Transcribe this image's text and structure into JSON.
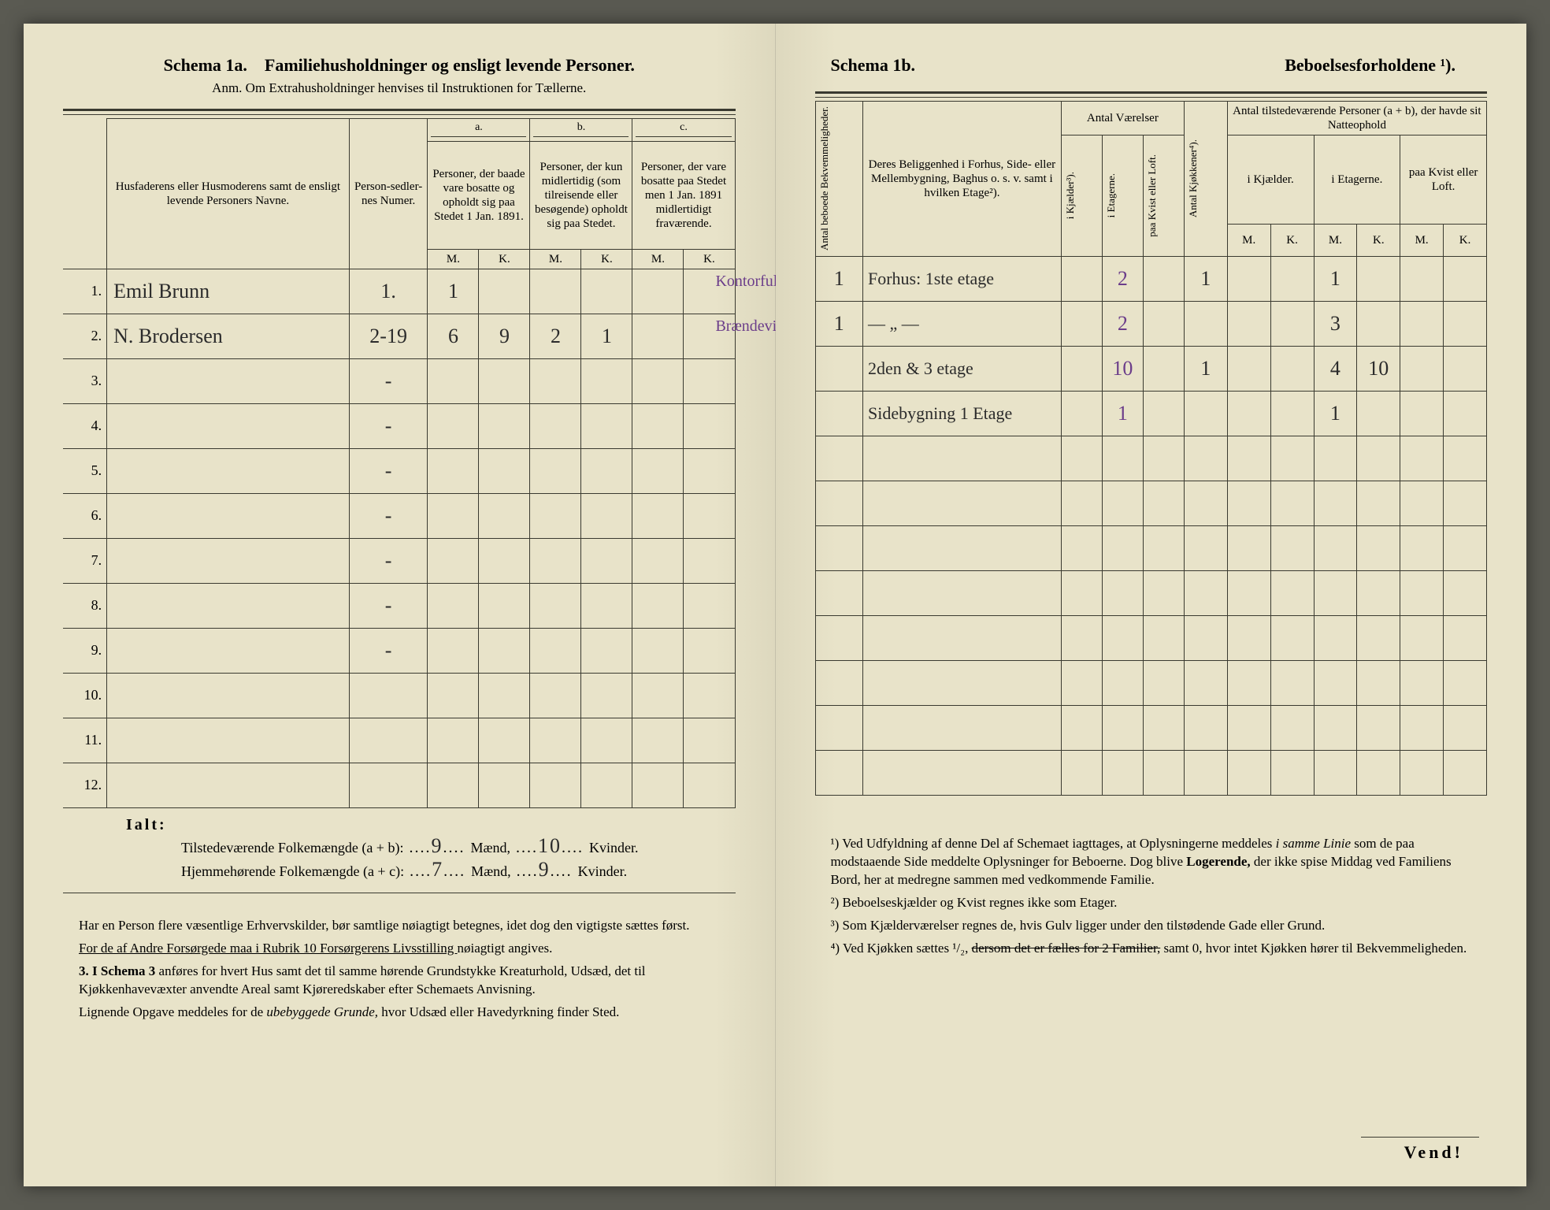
{
  "left": {
    "title_schema": "Schema 1a.",
    "title_rest": "Familiehusholdninger og ensligt levende Personer.",
    "anm": "Anm.  Om Extrahusholdninger henvises til Instruktionen for Tællerne.",
    "col_names": "Husfaderens eller Husmoderens samt de ensligt levende Personers Navne.",
    "col_sedler": "Person-sedler-nes Numer.",
    "group_a_letter": "a.",
    "group_a": "Personer, der baade vare bosatte og opholdt sig paa Stedet 1 Jan. 1891.",
    "group_b_letter": "b.",
    "group_b": "Personer, der kun midlertidig (som tilreisende eller besøgende) opholdt sig paa Stedet.",
    "group_c_letter": "c.",
    "group_c": "Personer, der vare bosatte paa Stedet men 1 Jan. 1891 midlertidigt fraværende.",
    "mk_m": "M.",
    "mk_k": "K.",
    "rows": [
      {
        "n": "1.",
        "name": "Emil  Brunn",
        "sedler": "1.",
        "aM": "1",
        "aK": "",
        "bM": "",
        "bK": "",
        "cM": "",
        "cK": "",
        "note": "Kontorfuldm. med Kolonialforretn."
      },
      {
        "n": "2.",
        "name": "N. Brodersen",
        "sedler": "2-19",
        "aM": "6",
        "aK": "9",
        "bM": "2",
        "bK": "1",
        "cM": "",
        "cK": "",
        "note": "Brændevinsdestillation."
      },
      {
        "n": "3.",
        "name": "",
        "sedler": "-",
        "aM": "",
        "aK": "",
        "bM": "",
        "bK": "",
        "cM": "",
        "cK": "",
        "note": ""
      },
      {
        "n": "4.",
        "name": "",
        "sedler": "-",
        "aM": "",
        "aK": "",
        "bM": "",
        "bK": "",
        "cM": "",
        "cK": "",
        "note": ""
      },
      {
        "n": "5.",
        "name": "",
        "sedler": "-",
        "aM": "",
        "aK": "",
        "bM": "",
        "bK": "",
        "cM": "",
        "cK": "",
        "note": ""
      },
      {
        "n": "6.",
        "name": "",
        "sedler": "-",
        "aM": "",
        "aK": "",
        "bM": "",
        "bK": "",
        "cM": "",
        "cK": "",
        "note": ""
      },
      {
        "n": "7.",
        "name": "",
        "sedler": "-",
        "aM": "",
        "aK": "",
        "bM": "",
        "bK": "",
        "cM": "",
        "cK": "",
        "note": ""
      },
      {
        "n": "8.",
        "name": "",
        "sedler": "-",
        "aM": "",
        "aK": "",
        "bM": "",
        "bK": "",
        "cM": "",
        "cK": "",
        "note": ""
      },
      {
        "n": "9.",
        "name": "",
        "sedler": "-",
        "aM": "",
        "aK": "",
        "bM": "",
        "bK": "",
        "cM": "",
        "cK": "",
        "note": ""
      },
      {
        "n": "10.",
        "name": "",
        "sedler": "",
        "aM": "",
        "aK": "",
        "bM": "",
        "bK": "",
        "cM": "",
        "cK": "",
        "note": ""
      },
      {
        "n": "11.",
        "name": "",
        "sedler": "",
        "aM": "",
        "aK": "",
        "bM": "",
        "bK": "",
        "cM": "",
        "cK": "",
        "note": ""
      },
      {
        "n": "12.",
        "name": "",
        "sedler": "",
        "aM": "",
        "aK": "",
        "bM": "",
        "bK": "",
        "cM": "",
        "cK": "",
        "note": ""
      }
    ],
    "totals_label": "Ialt:",
    "tilst_label": "Tilstedeværende Folkemængde (a + b):",
    "tilst_m": "9",
    "tilst_k": "10",
    "hjem_label": "Hjemmehørende Folkemængde (a + c):",
    "hjem_m": "7",
    "hjem_k": "9",
    "maend": "Mænd,",
    "kvinder": "Kvinder.",
    "foot1": "Har en Person flere væsentlige Erhvervskilder, bør samtlige nøiagtigt betegnes, idet dog den vigtigste sættes først.",
    "foot2a": "For de af Andre Forsørgede maa i Rubrik 10 Forsørgerens Livsstilling ",
    "foot2b": "nøiagtigt angives.",
    "foot3_lead": "3. I Schema 3",
    "foot3": " anføres for hvert Hus samt det til samme hørende Grundstykke Kreaturhold, Udsæd, det til Kjøkkenhavevæxter anvendte Areal samt Kjøreredskaber efter Schemaets Anvisning.",
    "foot4a": "Lignende Opgave meddeles for de ",
    "foot4i": "ubebyggede Grunde,",
    "foot4b": " hvor Udsæd eller Havedyrkning finder Sted."
  },
  "right": {
    "schema": "Schema 1b.",
    "title": "Beboelsesforholdene ¹).",
    "col_bekv": "Antal beboede Bekvemmeligheder.",
    "col_belig": "Deres Beliggenhed i Forhus, Side- eller Mellembygning, Baghus o. s. v. samt i hvilken Etage²).",
    "grp_vaer": "Antal Værelser",
    "v1": "i Kjælder³).",
    "v2": "i Etagerne.",
    "v3": "paa Kvist eller Loft.",
    "col_kjok": "Antal Kjøkkener⁴).",
    "grp_natt": "Antal tilstedeværende Personer (a + b), der havde sit Natteophold",
    "n1": "i Kjælder.",
    "n2": "i Etagerne.",
    "n3": "paa Kvist eller Loft.",
    "rows": [
      {
        "bekv": "1",
        "belig": "Forhus: 1ste etage",
        "v1": "",
        "v2": "2",
        "v3": "",
        "kjok": "1",
        "n1m": "",
        "n1k": "",
        "n2m": "1",
        "n2k": "",
        "n3m": "",
        "n3k": ""
      },
      {
        "bekv": "1",
        "belig": "— „ —",
        "v1": "",
        "v2": "2",
        "v3": "",
        "kjok": "",
        "n1m": "",
        "n1k": "",
        "n2m": "3",
        "n2k": "",
        "n3m": "",
        "n3k": ""
      },
      {
        "bekv": "",
        "belig": "2den & 3 etage",
        "v1": "",
        "v2": "10",
        "v3": "",
        "kjok": "1",
        "n1m": "",
        "n1k": "",
        "n2m": "4",
        "n2k": "10",
        "n3m": "",
        "n3k": ""
      },
      {
        "bekv": "",
        "belig": "Sidebygning 1 Etage",
        "v1": "",
        "v2": "1",
        "v3": "",
        "kjok": "",
        "n1m": "",
        "n1k": "",
        "n2m": "1",
        "n2k": "",
        "n3m": "",
        "n3k": ""
      },
      {
        "bekv": "",
        "belig": "",
        "v1": "",
        "v2": "",
        "v3": "",
        "kjok": "",
        "n1m": "",
        "n1k": "",
        "n2m": "",
        "n2k": "",
        "n3m": "",
        "n3k": ""
      },
      {
        "bekv": "",
        "belig": "",
        "v1": "",
        "v2": "",
        "v3": "",
        "kjok": "",
        "n1m": "",
        "n1k": "",
        "n2m": "",
        "n2k": "",
        "n3m": "",
        "n3k": ""
      },
      {
        "bekv": "",
        "belig": "",
        "v1": "",
        "v2": "",
        "v3": "",
        "kjok": "",
        "n1m": "",
        "n1k": "",
        "n2m": "",
        "n2k": "",
        "n3m": "",
        "n3k": ""
      },
      {
        "bekv": "",
        "belig": "",
        "v1": "",
        "v2": "",
        "v3": "",
        "kjok": "",
        "n1m": "",
        "n1k": "",
        "n2m": "",
        "n2k": "",
        "n3m": "",
        "n3k": ""
      },
      {
        "bekv": "",
        "belig": "",
        "v1": "",
        "v2": "",
        "v3": "",
        "kjok": "",
        "n1m": "",
        "n1k": "",
        "n2m": "",
        "n2k": "",
        "n3m": "",
        "n3k": ""
      },
      {
        "bekv": "",
        "belig": "",
        "v1": "",
        "v2": "",
        "v3": "",
        "kjok": "",
        "n1m": "",
        "n1k": "",
        "n2m": "",
        "n2k": "",
        "n3m": "",
        "n3k": ""
      },
      {
        "bekv": "",
        "belig": "",
        "v1": "",
        "v2": "",
        "v3": "",
        "kjok": "",
        "n1m": "",
        "n1k": "",
        "n2m": "",
        "n2k": "",
        "n3m": "",
        "n3k": ""
      },
      {
        "bekv": "",
        "belig": "",
        "v1": "",
        "v2": "",
        "v3": "",
        "kjok": "",
        "n1m": "",
        "n1k": "",
        "n2m": "",
        "n2k": "",
        "n3m": "",
        "n3k": ""
      }
    ],
    "fn1a": "¹) Ved Udfyldning af denne Del af Schemaet iagttages, at Oplysningerne meddeles ",
    "fn1i": "i samme Linie",
    "fn1b": " som de paa modstaaende Side meddelte Oplysninger for Beboerne. Dog blive ",
    "fn1bold": "Logerende,",
    "fn1c": " der ikke spise Middag ved Familiens Bord, her at medregne sammen med vedkommende Familie.",
    "fn2": "²) Beboelseskjælder og Kvist regnes ikke som Etager.",
    "fn3": "³) Som Kjælderværelser regnes de, hvis Gulv ligger under den tilstødende Gade eller Grund.",
    "fn4a": "⁴) Ved Kjøkken sættes ¹/₂, ",
    "fn4strike": "dersom det er fælles for 2 Familier,",
    "fn4b": " samt 0, hvor intet Kjøkken hører til Bekvemmeligheden.",
    "vend": "Vend!"
  }
}
